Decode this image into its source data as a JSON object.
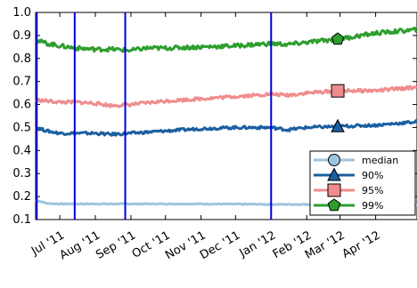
{
  "chart_data": {
    "type": "line",
    "title": "",
    "xlabel": "",
    "ylabel": "",
    "x_ticks": [
      "Jul '11",
      "Aug '11",
      "Sep '11",
      "Oct '11",
      "Nov '11",
      "Dec '11",
      "Jan '12",
      "Feb '12",
      "Mar '12",
      "Apr '12"
    ],
    "y_ticks": [
      "0.1",
      "0.2",
      "0.3",
      "0.4",
      "0.5",
      "0.6",
      "0.7",
      "0.8",
      "0.9",
      "1.0"
    ],
    "ylim": [
      0.1,
      1.0
    ],
    "x_range": [
      "2011-06-10",
      "2012-05-07"
    ],
    "grid": false,
    "legend_position": "bottom-right",
    "vertical_markers": [
      "2011-06-11",
      "2011-07-14",
      "2011-08-27",
      "2012-01-01"
    ],
    "series": [
      {
        "name": "median",
        "color": "#9ec5df",
        "marker": "circle",
        "marker_x": "2012-02-28",
        "x": [
          "2011-06-10",
          "2011-06-20",
          "2011-07-01",
          "2011-08-01",
          "2011-09-01",
          "2011-10-01",
          "2011-11-01",
          "2011-12-01",
          "2012-01-01",
          "2012-02-01",
          "2012-02-28",
          "2012-03-01",
          "2012-04-01",
          "2012-05-07"
        ],
        "values": [
          0.185,
          0.17,
          0.168,
          0.168,
          0.168,
          0.168,
          0.168,
          0.167,
          0.166,
          0.166,
          0.16,
          0.158,
          0.163,
          0.163
        ]
      },
      {
        "name": "90%",
        "color": "#1a5fa0",
        "marker": "triangle",
        "marker_x": "2012-02-28",
        "x": [
          "2011-06-10",
          "2011-06-20",
          "2011-07-01",
          "2011-07-15",
          "2011-08-01",
          "2011-08-15",
          "2011-09-01",
          "2011-10-01",
          "2011-11-01",
          "2011-12-01",
          "2012-01-01",
          "2012-01-15",
          "2012-02-01",
          "2012-03-01",
          "2012-04-01",
          "2012-05-07"
        ],
        "values": [
          0.5,
          0.485,
          0.475,
          0.475,
          0.475,
          0.47,
          0.475,
          0.485,
          0.495,
          0.5,
          0.5,
          0.49,
          0.5,
          0.505,
          0.51,
          0.525
        ]
      },
      {
        "name": "95%",
        "color": "#f08c8c",
        "marker": "square",
        "marker_x": "2012-02-28",
        "x": [
          "2011-06-10",
          "2011-06-20",
          "2011-07-01",
          "2011-07-15",
          "2011-08-01",
          "2011-08-15",
          "2011-09-01",
          "2011-10-01",
          "2011-11-01",
          "2011-12-01",
          "2012-01-01",
          "2012-01-15",
          "2012-02-01",
          "2012-03-01",
          "2012-04-01",
          "2012-05-07"
        ],
        "values": [
          0.62,
          0.615,
          0.61,
          0.61,
          0.605,
          0.595,
          0.6,
          0.615,
          0.625,
          0.635,
          0.645,
          0.64,
          0.65,
          0.66,
          0.66,
          0.675
        ]
      },
      {
        "name": "99%",
        "color": "#2e9e2e",
        "marker": "pentagon",
        "marker_x": "2012-02-28",
        "x": [
          "2011-06-10",
          "2011-06-20",
          "2011-07-01",
          "2011-07-15",
          "2011-08-01",
          "2011-08-15",
          "2011-09-01",
          "2011-09-15",
          "2011-10-01",
          "2011-11-01",
          "2011-12-01",
          "2012-01-01",
          "2012-01-15",
          "2012-02-01",
          "2012-03-01",
          "2012-04-01",
          "2012-05-07"
        ],
        "values": [
          0.88,
          0.865,
          0.855,
          0.845,
          0.84,
          0.84,
          0.835,
          0.845,
          0.845,
          0.85,
          0.855,
          0.865,
          0.86,
          0.87,
          0.885,
          0.91,
          0.925
        ]
      }
    ]
  }
}
